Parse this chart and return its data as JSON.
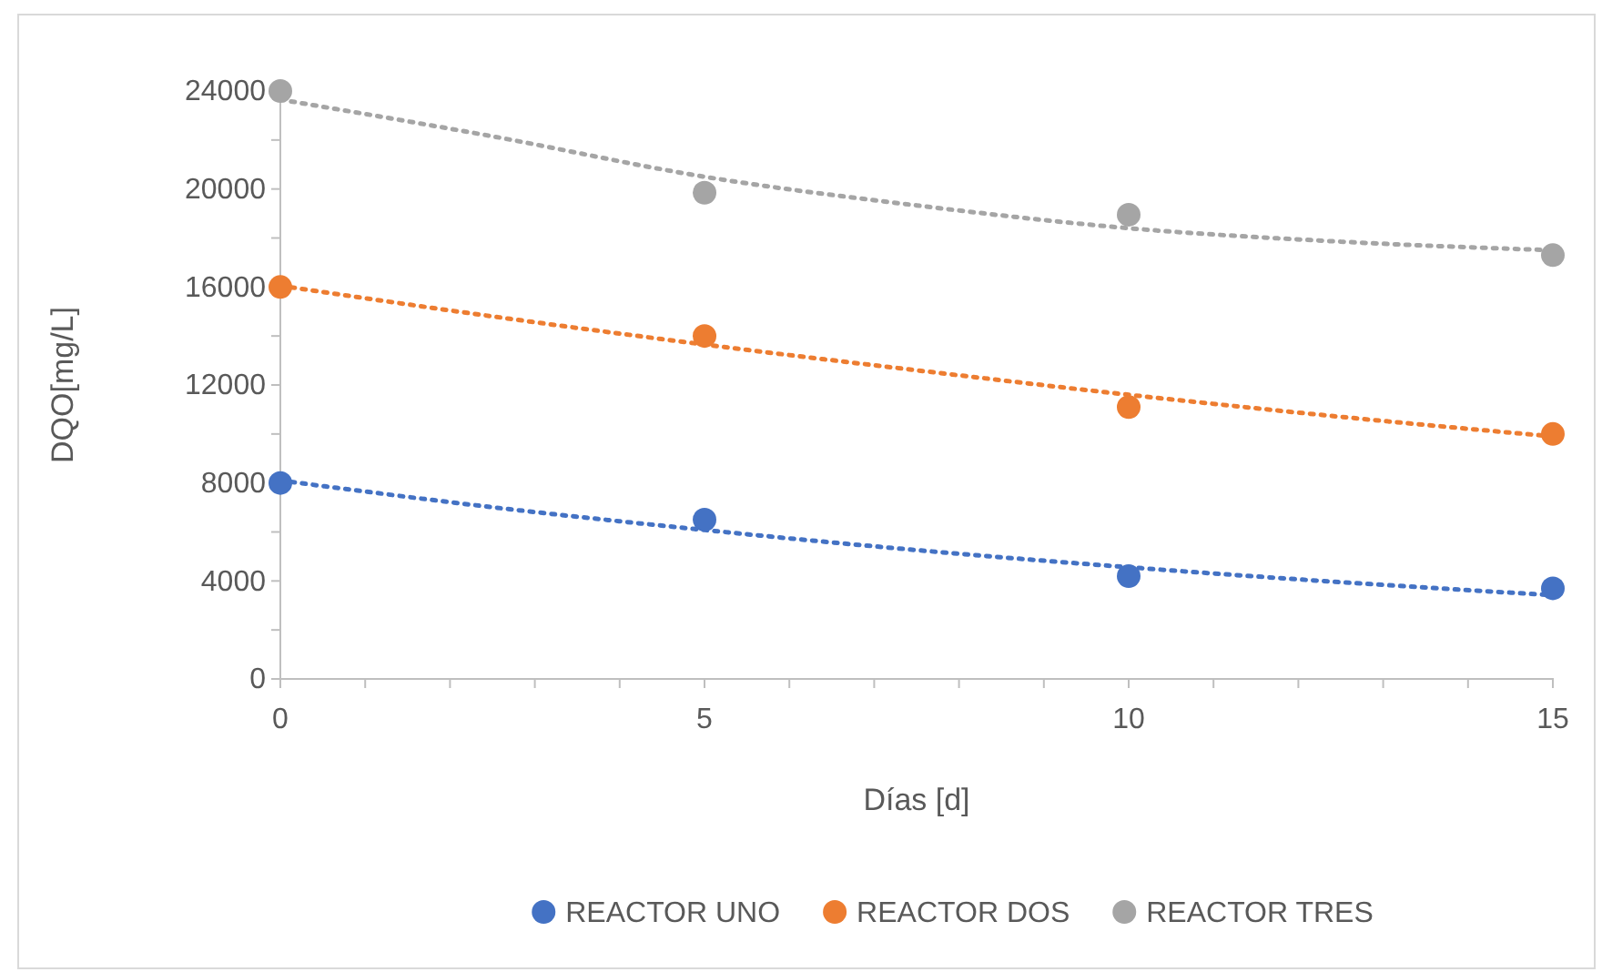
{
  "chart_data": {
    "type": "scatter",
    "xlabel": "Días [d]",
    "ylabel": "DQO[mg/L]",
    "xlim": [
      0,
      15
    ],
    "ylim": [
      0,
      24000
    ],
    "xticks": [
      0,
      {
        "value": 1,
        "label": null
      },
      {
        "value": 2,
        "label": null
      },
      {
        "value": 3,
        "label": null
      },
      {
        "value": 4,
        "label": null
      },
      5,
      {
        "value": 6,
        "label": null
      },
      {
        "value": 7,
        "label": null
      },
      {
        "value": 8,
        "label": null
      },
      {
        "value": 9,
        "label": null
      },
      10,
      {
        "value": 11,
        "label": null
      },
      {
        "value": 12,
        "label": null
      },
      {
        "value": 13,
        "label": null
      },
      {
        "value": 14,
        "label": null
      },
      15
    ],
    "yticks": [
      0,
      {
        "value": 2000,
        "label": null
      },
      4000,
      {
        "value": 6000,
        "label": null
      },
      8000,
      {
        "value": 10000,
        "label": null
      },
      12000,
      {
        "value": 14000,
        "label": null
      },
      16000,
      {
        "value": 18000,
        "label": null
      },
      20000,
      {
        "value": 22000,
        "label": null
      },
      24000
    ],
    "grid": false,
    "legend": "bottom",
    "marker": "circle",
    "x": [
      0,
      5,
      10,
      15
    ],
    "series": [
      {
        "name": "REACTOR UNO",
        "color": "#4472c4",
        "values": [
          8000,
          6500,
          4200,
          3700
        ]
      },
      {
        "name": "REACTOR DOS",
        "color": "#ed7d31",
        "values": [
          16000,
          14000,
          11100,
          10000
        ]
      },
      {
        "name": "REACTOR TRES",
        "color": "#a5a5a5",
        "values": [
          24000,
          19850,
          18950,
          17300
        ]
      },
      {
        "type": "line",
        "line_style": "dotted",
        "marker": "none",
        "color": "#4472c4",
        "x": [
          0,
          2.5,
          5,
          7.5,
          10,
          12.5,
          15
        ],
        "values": [
          8100,
          7010,
          6080,
          5260,
          4560,
          3950,
          3420
        ]
      },
      {
        "type": "line",
        "line_style": "dotted",
        "marker": "none",
        "color": "#ed7d31",
        "x": [
          0,
          2.5,
          5,
          7.5,
          10,
          12.5,
          15
        ],
        "values": [
          16050,
          14800,
          13650,
          12600,
          11600,
          10700,
          9900
        ]
      },
      {
        "type": "line",
        "line_style": "dotted",
        "marker": "none",
        "color": "#a5a5a5",
        "x": [
          0,
          2.5,
          5,
          7.5,
          10,
          12.5,
          15
        ],
        "values": [
          23650,
          22150,
          20500,
          19330,
          18400,
          17850,
          17500
        ]
      }
    ]
  }
}
